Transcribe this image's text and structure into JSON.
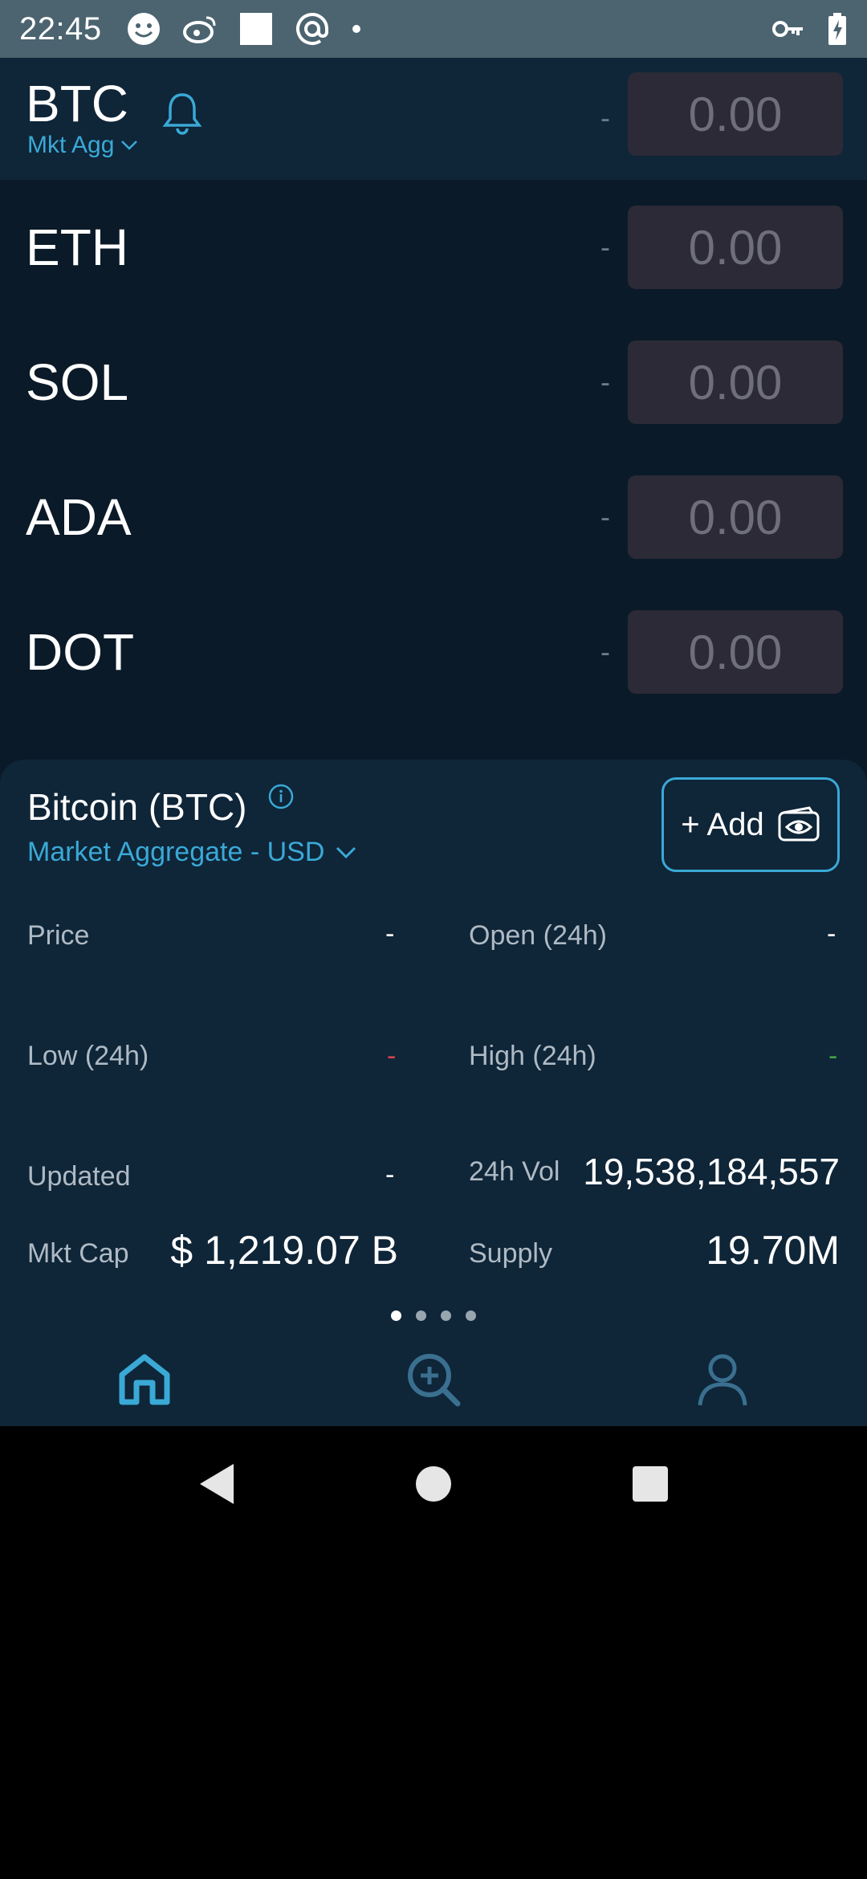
{
  "status_bar": {
    "time": "22:45",
    "icons_left": [
      "smiley-icon",
      "weibo-icon",
      "square-icon",
      "at-icon",
      "dot-icon"
    ],
    "icons_right": [
      "key-icon",
      "battery-charging-icon"
    ]
  },
  "watchlist": {
    "rows": [
      {
        "symbol": "BTC",
        "sub": "Mkt Agg",
        "change": "-",
        "price": "0.00"
      },
      {
        "symbol": "ETH",
        "change": "-",
        "price": "0.00"
      },
      {
        "symbol": "SOL",
        "change": "-",
        "price": "0.00"
      },
      {
        "symbol": "ADA",
        "change": "-",
        "price": "0.00"
      },
      {
        "symbol": "DOT",
        "change": "-",
        "price": "0.00"
      }
    ]
  },
  "detail": {
    "title": "Bitcoin (BTC)",
    "source": "Market Aggregate - USD",
    "add_label": "+ Add",
    "price_label": "Price",
    "price_value": "-",
    "open_label": "Open (24h)",
    "open_value": "-",
    "low_label": "Low (24h)",
    "low_value": "-",
    "high_label": "High (24h)",
    "high_value": "-",
    "updated_label": "Updated",
    "updated_value": "-",
    "vol_label": "24h Vol",
    "vol_value": "19,538,184,557",
    "mktcap_label": "Mkt Cap",
    "mktcap_value": "$ 1,219.07 B",
    "supply_label": "Supply",
    "supply_value": "19.70M",
    "pages": 4,
    "active_page": 0
  },
  "colors": {
    "accent": "#3aa9d6",
    "low": "#d2434a",
    "high": "#3fa14a"
  },
  "bottom_nav": [
    "home-icon",
    "search-add-icon",
    "profile-icon"
  ],
  "android_nav": [
    "back-icon",
    "home-circle-icon",
    "recents-icon"
  ]
}
